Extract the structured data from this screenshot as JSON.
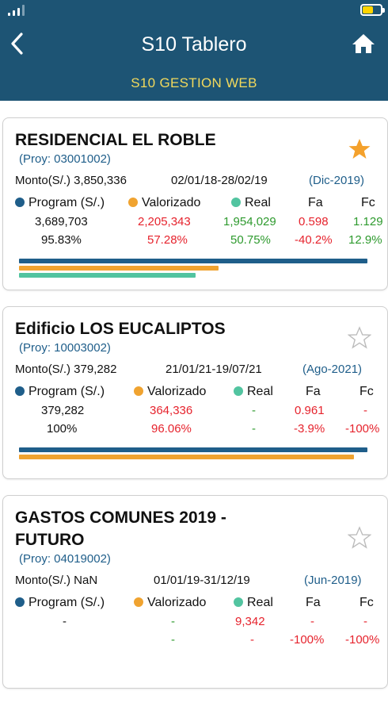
{
  "header": {
    "title": "S10 Tablero",
    "subtitle": "S10 GESTION WEB"
  },
  "icons": {
    "back": "back-chevron-icon",
    "home": "home-icon",
    "star_filled": "star-filled-icon",
    "star_outline": "star-outline-icon",
    "signal": "signal-icon",
    "battery": "battery-icon"
  },
  "colors": {
    "header_bg": "#1d5474",
    "subtitle": "#f2d95c",
    "program": "#1f5e8a",
    "valorizado": "#f0a330",
    "real": "#52c4a0",
    "negative": "#e6232d",
    "positive": "#2e9a2e",
    "star": "#f4a12c"
  },
  "legend": {
    "program": "Program (S/.)",
    "valorizado": "Valorizado",
    "real": "Real",
    "fa": "Fa",
    "fc": "Fc"
  },
  "projects": [
    {
      "title": "RESIDENCIAL EL ROBLE",
      "proy": "(Proy: 03001002)",
      "monto": "Monto(S/.) 3,850,336",
      "dates": "02/01/18-28/02/19",
      "period": "(Dic-2019)",
      "favorite": true,
      "program": "3,689,703",
      "valorizado": "2,205,343",
      "real": "1,954,029",
      "fa": "0.598",
      "fc": "1.129",
      "program_pct": "95.83%",
      "valorizado_pct": "57.28%",
      "real_pct": "50.75%",
      "fa_pct": "-40.2%",
      "fc_pct": "12.9%",
      "progress": {
        "program": 1.0,
        "valorizado": 0.5728,
        "real": 0.5075
      }
    },
    {
      "title": "Edificio LOS EUCALIPTOS",
      "proy": "(Proy: 10003002)",
      "monto": "Monto(S/.) 379,282",
      "dates": "21/01/21-19/07/21",
      "period": "(Ago-2021)",
      "favorite": false,
      "program": "379,282",
      "valorizado": "364,336",
      "real": "-",
      "fa": "0.961",
      "fc": "-",
      "program_pct": "100%",
      "valorizado_pct": "96.06%",
      "real_pct": "-",
      "fa_pct": "-3.9%",
      "fc_pct": "-100%",
      "progress": {
        "program": 1.0,
        "valorizado": 0.9606,
        "real": 0
      }
    },
    {
      "title_line1": "GASTOS COMUNES 2019 -",
      "title_line2": "FUTURO",
      "proy": "(Proy: 04019002)",
      "monto": "Monto(S/.) NaN",
      "dates": "01/01/19-31/12/19",
      "period": "(Jun-2019)",
      "favorite": false,
      "program": "-",
      "valorizado": "-",
      "real": "9,342",
      "fa": "-",
      "fc": "-",
      "program_pct": "",
      "valorizado_pct": "-",
      "real_pct": "-",
      "fa_pct": "-100%",
      "fc_pct": "-100%"
    }
  ]
}
